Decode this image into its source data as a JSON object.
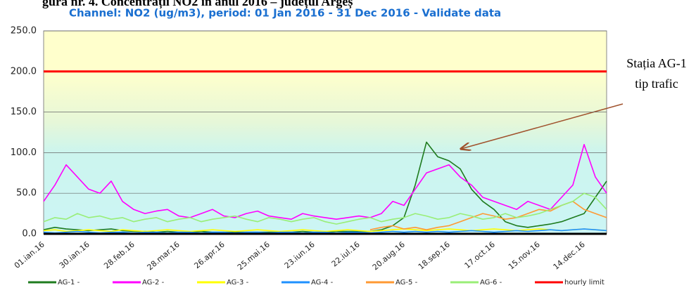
{
  "heading": "gura nr. 4. Concentrații NO2 în anul 2016 – județul Argeș",
  "chart_data": {
    "type": "line",
    "title": "Channel: NO2 (ug/m3), period: 01 Jan 2016 - 31 Dec 2016 - Validate data",
    "annotation": [
      "Stația AG-1",
      "tip trafic"
    ],
    "categories": [
      "01.ian.16",
      null,
      null,
      null,
      "30.ian.16",
      null,
      null,
      null,
      "28.feb.16",
      null,
      null,
      null,
      "28.mar.16",
      null,
      null,
      null,
      "26.apr.16",
      null,
      null,
      null,
      "25.mai.16",
      null,
      null,
      null,
      "23.iun.16",
      null,
      null,
      null,
      "22.iul.16",
      null,
      null,
      null,
      "20.aug.16",
      null,
      null,
      null,
      "18.sep.16",
      null,
      null,
      null,
      "17.oct.16",
      null,
      null,
      null,
      "15.nov.16",
      null,
      null,
      null,
      "14.dec.16",
      null,
      null
    ],
    "ylim": [
      0,
      250
    ],
    "yticks": [
      {
        "value": 0,
        "label": "0.0"
      },
      {
        "value": 50,
        "label": "50.0"
      },
      {
        "value": 100,
        "label": "100.0"
      },
      {
        "value": 150,
        "label": "150.0"
      },
      {
        "value": 200,
        "label": "200.0"
      },
      {
        "value": 250,
        "label": "250.0"
      }
    ],
    "grid": true,
    "series": [
      {
        "name": "AG-1 -",
        "color": "#1e7b1e",
        "values": [
          5,
          8,
          6,
          5,
          4,
          5,
          6,
          4,
          3,
          3,
          2,
          3,
          2,
          2,
          3,
          2,
          2,
          2,
          2,
          2,
          2,
          2,
          2,
          3,
          2,
          2,
          3,
          3,
          3,
          3,
          5,
          10,
          20,
          60,
          113,
          95,
          90,
          80,
          55,
          40,
          30,
          15,
          10,
          8,
          10,
          12,
          15,
          20,
          25,
          45,
          65
        ]
      },
      {
        "name": "AG-2 -",
        "color": "#ff00ff",
        "values": [
          40,
          60,
          85,
          70,
          55,
          50,
          65,
          40,
          30,
          25,
          28,
          30,
          22,
          20,
          25,
          30,
          22,
          20,
          25,
          28,
          22,
          20,
          18,
          25,
          22,
          20,
          18,
          20,
          22,
          20,
          25,
          40,
          35,
          55,
          75,
          80,
          85,
          70,
          60,
          45,
          40,
          35,
          30,
          40,
          35,
          30,
          45,
          60,
          110,
          70,
          50
        ]
      },
      {
        "name": "AG-3 -",
        "color": "#ffff00",
        "values": [
          4,
          5,
          3,
          4,
          5,
          4,
          3,
          5,
          4,
          3,
          4,
          5,
          4,
          3,
          4,
          5,
          4,
          3,
          4,
          5,
          4,
          3,
          4,
          5,
          4,
          3,
          4,
          5,
          4,
          3,
          4,
          5,
          6,
          5,
          4,
          5,
          6,
          5,
          4,
          5,
          6,
          5,
          4,
          5,
          6,
          5,
          4,
          5,
          6,
          5,
          4
        ]
      },
      {
        "name": "AG-4 -",
        "color": "#1e90ff",
        "values": [
          2,
          1,
          2,
          3,
          2,
          1,
          2,
          2,
          1,
          2,
          2,
          1,
          2,
          2,
          1,
          2,
          2,
          1,
          2,
          2,
          1,
          2,
          2,
          1,
          2,
          2,
          1,
          2,
          2,
          1,
          2,
          3,
          2,
          3,
          2,
          3,
          2,
          3,
          4,
          3,
          2,
          3,
          4,
          3,
          4,
          5,
          4,
          5,
          6,
          5,
          4
        ]
      },
      {
        "name": "AG-5 -",
        "color": "#ff9933",
        "values": [
          null,
          null,
          null,
          null,
          null,
          null,
          null,
          null,
          null,
          null,
          null,
          null,
          null,
          null,
          null,
          null,
          null,
          null,
          null,
          null,
          null,
          null,
          null,
          null,
          null,
          null,
          null,
          null,
          null,
          5,
          8,
          10,
          6,
          8,
          5,
          8,
          10,
          15,
          20,
          25,
          22,
          18,
          20,
          25,
          30,
          28,
          35,
          40,
          30,
          25,
          20
        ]
      },
      {
        "name": "AG-6 -",
        "color": "#99ee77",
        "values": [
          15,
          20,
          18,
          25,
          20,
          22,
          18,
          20,
          15,
          18,
          20,
          15,
          18,
          20,
          15,
          18,
          20,
          22,
          18,
          15,
          20,
          18,
          15,
          18,
          20,
          15,
          12,
          15,
          18,
          20,
          15,
          18,
          20,
          25,
          22,
          18,
          20,
          25,
          22,
          18,
          20,
          25,
          20,
          22,
          25,
          30,
          35,
          40,
          50,
          45,
          30
        ]
      },
      {
        "name": "hourly limit",
        "color": "#ff0000",
        "values": [
          200,
          200,
          200,
          200,
          200,
          200,
          200,
          200,
          200,
          200,
          200,
          200,
          200,
          200,
          200,
          200,
          200,
          200,
          200,
          200,
          200,
          200,
          200,
          200,
          200,
          200,
          200,
          200,
          200,
          200,
          200,
          200,
          200,
          200,
          200,
          200,
          200,
          200,
          200,
          200,
          200,
          200,
          200,
          200,
          200,
          200,
          200,
          200,
          200,
          200,
          200
        ]
      }
    ]
  }
}
